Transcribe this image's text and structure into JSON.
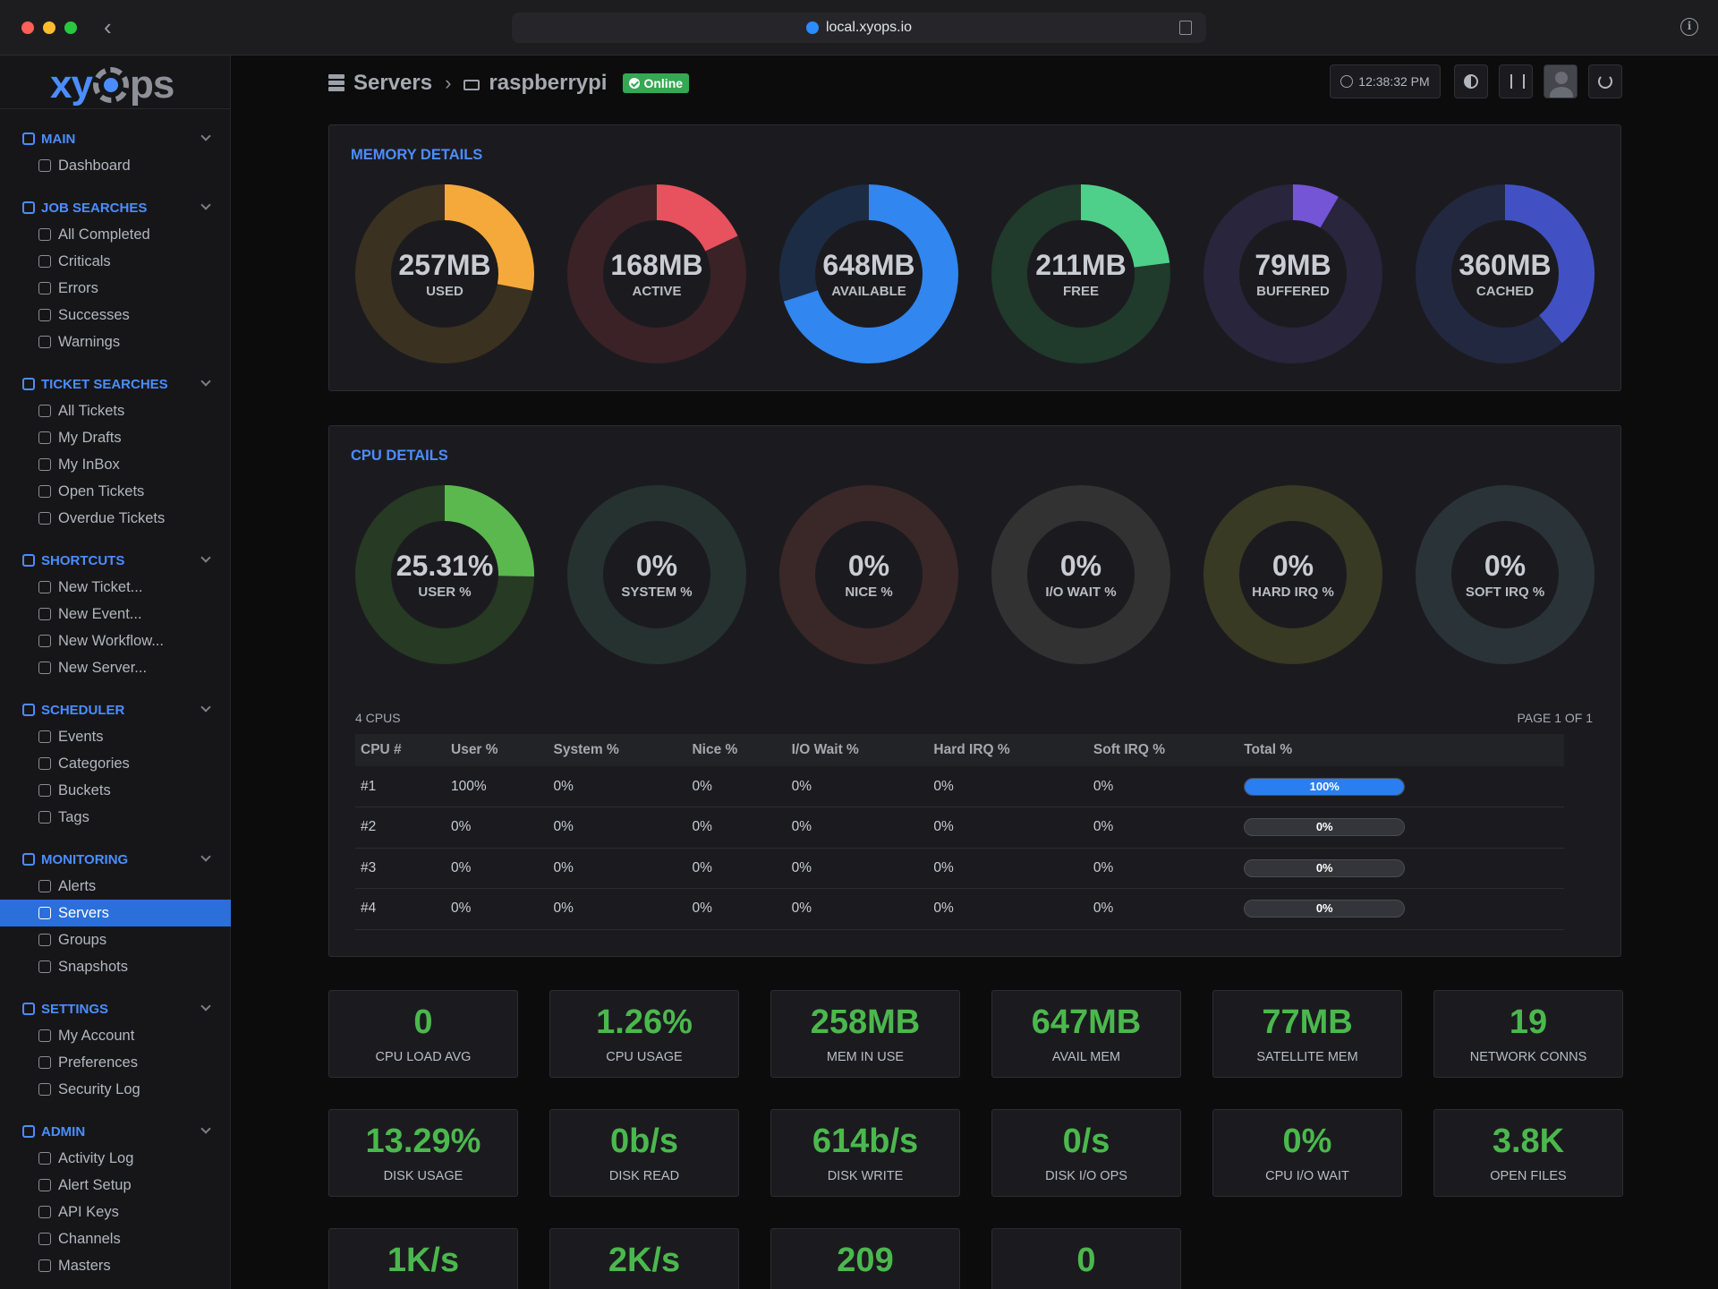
{
  "browser": {
    "url": "local.xyops.io"
  },
  "logo": {
    "left": "xy",
    "right": "ps"
  },
  "sidebar": {
    "sections": [
      {
        "title": "MAIN",
        "icon": "home-icon",
        "items": [
          {
            "label": "Dashboard",
            "icon": "dashboard-icon"
          }
        ]
      },
      {
        "title": "JOB SEARCHES",
        "icon": "job-search-icon",
        "items": [
          {
            "label": "All Completed",
            "icon": "all-completed-icon"
          },
          {
            "label": "Criticals",
            "icon": "fire-icon"
          },
          {
            "label": "Errors",
            "icon": "error-icon"
          },
          {
            "label": "Successes",
            "icon": "success-check-icon"
          },
          {
            "label": "Warnings",
            "icon": "warning-triangle-icon"
          }
        ]
      },
      {
        "title": "TICKET SEARCHES",
        "icon": "ticket-search-icon",
        "items": [
          {
            "label": "All Tickets",
            "icon": "tickets-icon"
          },
          {
            "label": "My Drafts",
            "icon": "drafts-dots-icon"
          },
          {
            "label": "My InBox",
            "icon": "inbox-icon"
          },
          {
            "label": "Open Tickets",
            "icon": "open-ticket-icon"
          },
          {
            "label": "Overdue Tickets",
            "icon": "calendar-icon"
          }
        ]
      },
      {
        "title": "SHORTCUTS",
        "icon": "shortcut-hand-icon",
        "items": [
          {
            "label": "New Ticket...",
            "icon": "new-ticket-icon"
          },
          {
            "label": "New Event...",
            "icon": "new-event-icon"
          },
          {
            "label": "New Workflow...",
            "icon": "new-workflow-icon"
          },
          {
            "label": "New Server...",
            "icon": "new-server-icon"
          }
        ]
      },
      {
        "title": "SCHEDULER",
        "icon": "scheduler-icon",
        "items": [
          {
            "label": "Events",
            "icon": "events-clock-icon"
          },
          {
            "label": "Categories",
            "icon": "folder-icon"
          },
          {
            "label": "Buckets",
            "icon": "bucket-icon"
          },
          {
            "label": "Tags",
            "icon": "tag-icon"
          }
        ]
      },
      {
        "title": "MONITORING",
        "icon": "monitoring-icon",
        "items": [
          {
            "label": "Alerts",
            "icon": "alert-icon"
          },
          {
            "label": "Servers",
            "icon": "servers-icon",
            "active": true
          },
          {
            "label": "Groups",
            "icon": "groups-icon"
          },
          {
            "label": "Snapshots",
            "icon": "snapshot-monitor-icon"
          }
        ]
      },
      {
        "title": "SETTINGS",
        "icon": "settings-gear-icon",
        "items": [
          {
            "label": "My Account",
            "icon": "account-user-icon"
          },
          {
            "label": "Preferences",
            "icon": "preferences-sliders-icon"
          },
          {
            "label": "Security Log",
            "icon": "shield-icon"
          }
        ]
      },
      {
        "title": "ADMIN",
        "icon": "lock-icon",
        "items": [
          {
            "label": "Activity Log",
            "icon": "activity-log-icon"
          },
          {
            "label": "Alert Setup",
            "icon": "alert-setup-icon"
          },
          {
            "label": "API Keys",
            "icon": "api-key-icon"
          },
          {
            "label": "Channels",
            "icon": "megaphone-icon"
          },
          {
            "label": "Masters",
            "icon": "database-icon"
          }
        ]
      }
    ]
  },
  "header": {
    "crumb_servers": "Servers",
    "crumb_host": "raspberrypi",
    "status_badge": "Online",
    "clock": "12:38:32 PM"
  },
  "memory": {
    "title": "MEMORY DETAILS",
    "donuts": [
      {
        "value": "257MB",
        "label": "USED",
        "fraction": 0.28,
        "color": "#f5a93b",
        "track": "#3a3120"
      },
      {
        "value": "168MB",
        "label": "ACTIVE",
        "fraction": 0.18,
        "color": "#e8515e",
        "track": "#3a2226"
      },
      {
        "value": "648MB",
        "label": "AVAILABLE",
        "fraction": 0.7,
        "color": "#3186f0",
        "track": "#1d2c45"
      },
      {
        "value": "211MB",
        "label": "FREE",
        "fraction": 0.23,
        "color": "#4fd08a",
        "track": "#203a2c"
      },
      {
        "value": "79MB",
        "label": "BUFFERED",
        "fraction": 0.085,
        "color": "#7455d6",
        "track": "#28253c"
      },
      {
        "value": "360MB",
        "label": "CACHED",
        "fraction": 0.39,
        "color": "#4151c4",
        "track": "#22283f"
      }
    ]
  },
  "cpu": {
    "title": "CPU DETAILS",
    "donuts": [
      {
        "value": "25.31%",
        "label": "USER %",
        "fraction": 0.2531,
        "color": "#5bb84f",
        "track": "#263a24"
      },
      {
        "value": "0%",
        "label": "SYSTEM %",
        "fraction": 0,
        "color": "#5bb8a0",
        "track": "#263230"
      },
      {
        "value": "0%",
        "label": "NICE %",
        "fraction": 0,
        "color": "#c95050",
        "track": "#3a2828"
      },
      {
        "value": "0%",
        "label": "I/O WAIT %",
        "fraction": 0,
        "color": "#8a8a8a",
        "track": "#323233"
      },
      {
        "value": "0%",
        "label": "HARD IRQ %",
        "fraction": 0,
        "color": "#a8a84a",
        "track": "#383a24"
      },
      {
        "value": "0%",
        "label": "SOFT IRQ %",
        "fraction": 0,
        "color": "#5a8aa0",
        "track": "#2a3438"
      }
    ],
    "count_label": "4 CPUS",
    "page_label": "PAGE 1 OF 1",
    "columns": [
      "CPU #",
      "User %",
      "System %",
      "Nice %",
      "I/O Wait %",
      "Hard IRQ %",
      "Soft IRQ %",
      "Total %"
    ],
    "rows": [
      {
        "cpu": "#1",
        "user": "100%",
        "system": "0%",
        "nice": "0%",
        "iowait": "0%",
        "hardirq": "0%",
        "softirq": "0%",
        "total": "100%",
        "total_fraction": 1.0
      },
      {
        "cpu": "#2",
        "user": "0%",
        "system": "0%",
        "nice": "0%",
        "iowait": "0%",
        "hardirq": "0%",
        "softirq": "0%",
        "total": "0%",
        "total_fraction": 0
      },
      {
        "cpu": "#3",
        "user": "0%",
        "system": "0%",
        "nice": "0%",
        "iowait": "0%",
        "hardirq": "0%",
        "softirq": "0%",
        "total": "0%",
        "total_fraction": 0
      },
      {
        "cpu": "#4",
        "user": "0%",
        "system": "0%",
        "nice": "0%",
        "iowait": "0%",
        "hardirq": "0%",
        "softirq": "0%",
        "total": "0%",
        "total_fraction": 0
      }
    ]
  },
  "stats": [
    {
      "value": "0",
      "label": "CPU LOAD AVG"
    },
    {
      "value": "1.26%",
      "label": "CPU USAGE"
    },
    {
      "value": "258MB",
      "label": "MEM IN USE"
    },
    {
      "value": "647MB",
      "label": "AVAIL MEM"
    },
    {
      "value": "77MB",
      "label": "SATELLITE MEM"
    },
    {
      "value": "19",
      "label": "NETWORK CONNS"
    },
    {
      "value": "13.29%",
      "label": "DISK USAGE"
    },
    {
      "value": "0b/s",
      "label": "DISK READ"
    },
    {
      "value": "614b/s",
      "label": "DISK WRITE"
    },
    {
      "value": "0/s",
      "label": "DISK I/O OPS"
    },
    {
      "value": "0%",
      "label": "CPU I/O WAIT"
    },
    {
      "value": "3.8K",
      "label": "OPEN FILES"
    },
    {
      "value": "1K/s",
      "label": ""
    },
    {
      "value": "2K/s",
      "label": ""
    },
    {
      "value": "209",
      "label": ""
    },
    {
      "value": "0",
      "label": ""
    }
  ]
}
